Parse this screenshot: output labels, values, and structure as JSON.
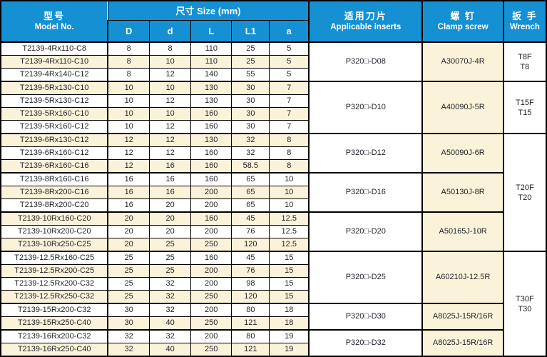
{
  "colors": {
    "header_blue": "#1590D2",
    "row_cream": "#FBF3D9",
    "border": "#000000",
    "body_text": "#1E2029",
    "header_text": "#FFFFFF"
  },
  "header": {
    "model_zh": "型号",
    "model_en": "Model No.",
    "size_group": "尺寸 Size (mm)",
    "size_cols": [
      "D",
      "d",
      "L",
      "L1",
      "a"
    ],
    "inserts_zh": "适用刀片",
    "inserts_en": "Applicable inserts",
    "screw_zh": "螺 钉",
    "screw_en": "Clamp screw",
    "wrench_zh": "扳 手",
    "wrench_en": "Wrench"
  },
  "rows": [
    [
      "T2139-4Rx110-C8",
      "8",
      "8",
      "110",
      "25",
      "5"
    ],
    [
      "T2139-4Rx110-C10",
      "8",
      "10",
      "110",
      "25",
      "5"
    ],
    [
      "T2139-4Rx140-C12",
      "8",
      "12",
      "140",
      "55",
      "5"
    ],
    [
      "T2139-5Rx130-C10",
      "10",
      "10",
      "130",
      "30",
      "7"
    ],
    [
      "T2139-5Rx130-C12",
      "10",
      "12",
      "130",
      "30",
      "7"
    ],
    [
      "T2139-5Rx160-C10",
      "10",
      "10",
      "160",
      "30",
      "7"
    ],
    [
      "T2139-5Rx160-C12",
      "10",
      "12",
      "160",
      "30",
      "7"
    ],
    [
      "T2139-6Rx130-C12",
      "12",
      "12",
      "130",
      "32",
      "8"
    ],
    [
      "T2139-6Rx160-C12",
      "12",
      "12",
      "160",
      "32",
      "8"
    ],
    [
      "T2139-6Rx160-C16",
      "12",
      "16",
      "160",
      "58.5",
      "8"
    ],
    [
      "T2139-8Rx160-C16",
      "16",
      "16",
      "160",
      "65",
      "10"
    ],
    [
      "T2139-8Rx200-C16",
      "16",
      "16",
      "200",
      "65",
      "10"
    ],
    [
      "T2139-8Rx200-C20",
      "16",
      "20",
      "200",
      "65",
      "10"
    ],
    [
      "T2139-10Rx160-C20",
      "20",
      "20",
      "160",
      "45",
      "12.5"
    ],
    [
      "T2139-10Rx200-C20",
      "20",
      "20",
      "200",
      "76",
      "12.5"
    ],
    [
      "T2139-10Rx250-C25",
      "20",
      "25",
      "250",
      "120",
      "12.5"
    ],
    [
      "T2139-12.5Rx160-C25",
      "25",
      "25",
      "160",
      "45",
      "15"
    ],
    [
      "T2139-12.5Rx200-C25",
      "25",
      "25",
      "200",
      "76",
      "15"
    ],
    [
      "T2139-12.5Rx200-C32",
      "25",
      "32",
      "200",
      "98",
      "15"
    ],
    [
      "T2139-12.5Rx250-C32",
      "25",
      "32",
      "250",
      "120",
      "15"
    ],
    [
      "T2139-15Rx200-C32",
      "30",
      "32",
      "200",
      "80",
      "18"
    ],
    [
      "T2139-15Rx250-C40",
      "30",
      "40",
      "250",
      "121",
      "18"
    ],
    [
      "T2139-16Rx200-C32",
      "32",
      "32",
      "200",
      "80",
      "19"
    ],
    [
      "T2139-16Rx250-C40",
      "32",
      "40",
      "250",
      "121",
      "19"
    ]
  ],
  "groups": [
    {
      "start": 0,
      "len": 3,
      "insert": "P320□-D08",
      "screw": "A30070J-4R"
    },
    {
      "start": 3,
      "len": 4,
      "insert": "P320□-D10",
      "screw": "A40090J-5R"
    },
    {
      "start": 7,
      "len": 3,
      "insert": "P320□-D12",
      "screw": "A50090J-6R"
    },
    {
      "start": 10,
      "len": 3,
      "insert": "P320□-D16",
      "screw": "A50130J-8R"
    },
    {
      "start": 13,
      "len": 3,
      "insert": "P320□-D20",
      "screw": "A50165J-10R"
    },
    {
      "start": 16,
      "len": 4,
      "insert": "P320□-D25",
      "screw": "A60210J-12.5R"
    },
    {
      "start": 20,
      "len": 2,
      "insert": "P320□-D30",
      "screw": "A8025J-15R/16R"
    },
    {
      "start": 22,
      "len": 2,
      "insert": "P320□-D32",
      "screw": "A8025J-15R/16R"
    }
  ],
  "wrench_groups": [
    {
      "start": 0,
      "len": 3,
      "lines": [
        "T8F",
        "T8"
      ]
    },
    {
      "start": 3,
      "len": 4,
      "lines": [
        "T15F",
        "T15"
      ]
    },
    {
      "start": 7,
      "len": 9,
      "lines": [
        "T20F",
        "T20"
      ]
    },
    {
      "start": 16,
      "len": 8,
      "lines": [
        "T30F",
        "T30"
      ]
    }
  ],
  "group_ends": [
    2,
    6,
    9,
    12,
    15,
    19,
    21,
    23
  ]
}
